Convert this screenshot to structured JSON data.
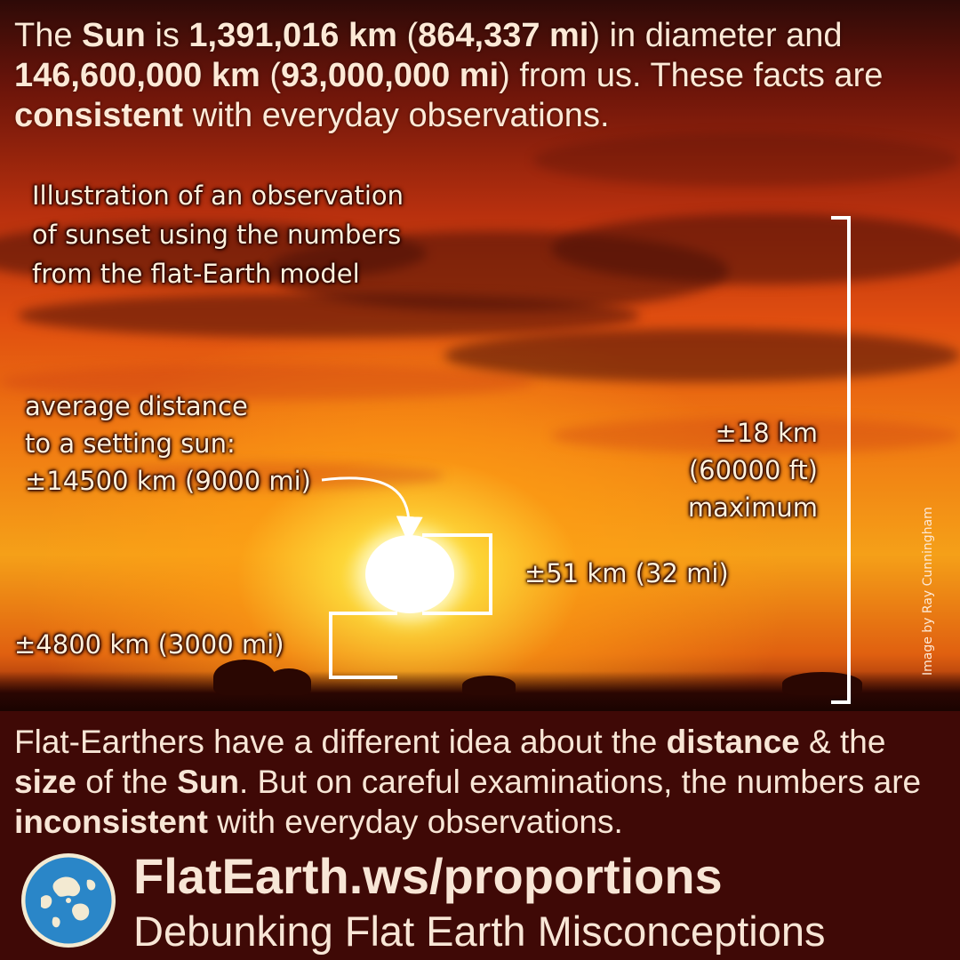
{
  "headline": {
    "t1": "The ",
    "b1": "Sun",
    "t2": " is ",
    "b2": "1,391,016 km",
    "t3": " (",
    "b3": "864,337 mi",
    "t4": ") in diameter and ",
    "b4": "146,600,000 km",
    "t5": " (",
    "b5": "93,000,000 mi",
    "t6": ") from us. These facts are ",
    "b6": "consistent",
    "t7": " with everyday observations."
  },
  "illustration": {
    "caption_lines": [
      "Illustration of an observation",
      "of sunset using the numbers",
      "from the flat-Earth model"
    ],
    "avg_distance_lines": [
      "average distance",
      "to a setting sun:",
      "±14500 km (9000 mi)"
    ],
    "sun_height": "±51 km (32 mi)",
    "ground_distance": "±4800 km (3000 mi)",
    "max_height_lines": [
      "±18 km",
      "(60000 ft)",
      "maximum"
    ]
  },
  "credit": "Image by Ray Cunningham",
  "bottom": {
    "t1": "Flat-Earthers have a different idea about the ",
    "b1": "distance",
    "t2": " & the ",
    "b2": "size",
    "t3": " of the ",
    "b3": "Sun",
    "t4": ". But on careful examinations, the numbers are ",
    "b4": "inconsistent",
    "t5": " with everyday observations."
  },
  "footer": {
    "url": "FlatEarth.ws/proportions",
    "tagline": "Debunking Flat Earth Misconceptions"
  },
  "colors": {
    "panel": "#3f0906",
    "text": "#f8e6d6",
    "sun": "#ffffff",
    "logo_water": "#2a86c8",
    "logo_bg": "#f3ead2"
  }
}
